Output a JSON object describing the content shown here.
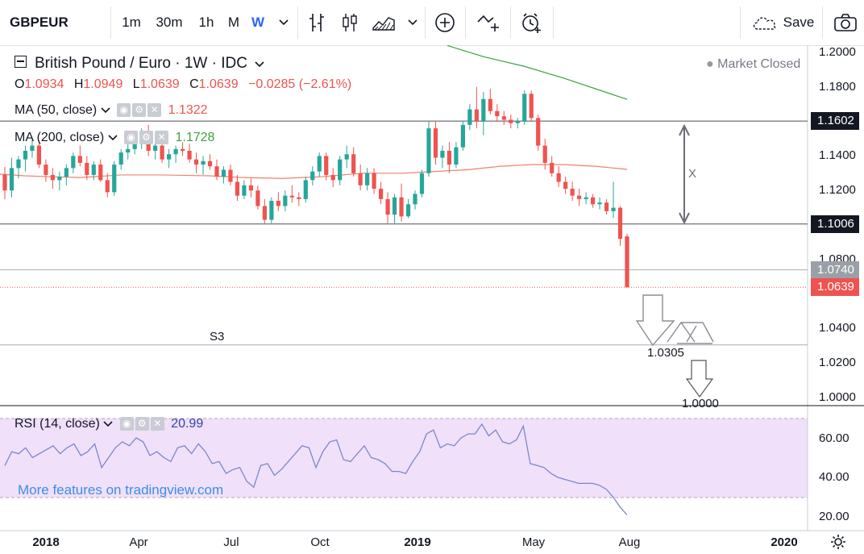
{
  "toolbar": {
    "symbol": "GBPEUR",
    "intervals": [
      "1m",
      "30m",
      "1h",
      "M",
      "W"
    ],
    "active_interval": "W",
    "save_label": "Save",
    "icons": [
      "chevron-down-icon",
      "bar-chart-icon",
      "candlestick-icon",
      "area-chart-icon",
      "chevron-down-icon",
      "add-indicator-icon",
      "compare-icon",
      "alert-icon",
      "cloud-save-icon",
      "camera-icon"
    ]
  },
  "legend": {
    "title": "British Pound / Euro · 1W · IDC",
    "o_label": "O",
    "o_value": "1.0934",
    "h_label": "H",
    "h_value": "1.0949",
    "l_label": "L",
    "l_value": "1.0639",
    "c_label": "C",
    "c_value": "1.0639",
    "change": "−0.0285 (−2.61%)",
    "market_status": "Market Closed",
    "ma50_label": "MA (50, close)",
    "ma50_value": "1.1322",
    "ma200_label": "MA (200, close)",
    "ma200_value": "1.1728",
    "rsi_label": "RSI (14, close)",
    "rsi_value": "20.99",
    "promo": "More features on tradingview.com"
  },
  "colors": {
    "up": "#26a69a",
    "down": "#ef5350",
    "ma50": "#f0806e",
    "ma200": "#3fa040",
    "rsi": "#7b88c8",
    "rsi_band": "#f0e0fa",
    "accent": "#2962ff"
  },
  "chart_data": {
    "type": "candlestick",
    "symbol": "GBPEUR",
    "y_ticks": [
      "1.2000",
      "1.1800",
      "1.1400",
      "1.1200",
      "1.0800",
      "1.0400",
      "1.0200",
      "1.0000"
    ],
    "x_ticks": [
      "2018",
      "Apr",
      "Jul",
      "Oct",
      "2019",
      "May",
      "Aug",
      "2020"
    ],
    "price_tags": [
      {
        "label": "1.1602",
        "value": 1.1602,
        "bg": "#131722"
      },
      {
        "label": "1.1006",
        "value": 1.1006,
        "bg": "#131722"
      },
      {
        "label": "1.0740",
        "value": 1.074,
        "bg": "#9aa0a8"
      },
      {
        "label": "1.0639",
        "value": 1.0639,
        "bg": "#ef5350"
      }
    ],
    "horizontal_lines": [
      1.1602,
      1.1006,
      1.074,
      1.0305
    ],
    "annotations": {
      "s3": "S3",
      "s3_value": "1.0305",
      "target": "1.0000",
      "range_mark": "X"
    },
    "candles_ohlc": [
      [
        1.1292,
        1.1336,
        1.115,
        1.12
      ],
      [
        1.12,
        1.139,
        1.116,
        1.133
      ],
      [
        1.133,
        1.14,
        1.127,
        1.138
      ],
      [
        1.138,
        1.146,
        1.131,
        1.143
      ],
      [
        1.143,
        1.15,
        1.139,
        1.146
      ],
      [
        1.146,
        1.149,
        1.133,
        1.135
      ],
      [
        1.135,
        1.138,
        1.125,
        1.129
      ],
      [
        1.129,
        1.133,
        1.121,
        1.126
      ],
      [
        1.126,
        1.131,
        1.12,
        1.128
      ],
      [
        1.128,
        1.135,
        1.123,
        1.133
      ],
      [
        1.133,
        1.142,
        1.13,
        1.14
      ],
      [
        1.14,
        1.146,
        1.134,
        1.136
      ],
      [
        1.136,
        1.14,
        1.126,
        1.129
      ],
      [
        1.129,
        1.137,
        1.126,
        1.135
      ],
      [
        1.135,
        1.138,
        1.125,
        1.126
      ],
      [
        1.126,
        1.13,
        1.116,
        1.119
      ],
      [
        1.119,
        1.137,
        1.117,
        1.135
      ],
      [
        1.135,
        1.144,
        1.132,
        1.142
      ],
      [
        1.142,
        1.147,
        1.138,
        1.144
      ],
      [
        1.144,
        1.152,
        1.141,
        1.149
      ],
      [
        1.149,
        1.156,
        1.144,
        1.153
      ],
      [
        1.153,
        1.158,
        1.14,
        1.143
      ],
      [
        1.143,
        1.15,
        1.138,
        1.146
      ],
      [
        1.146,
        1.149,
        1.136,
        1.138
      ],
      [
        1.138,
        1.144,
        1.133,
        1.141
      ],
      [
        1.141,
        1.146,
        1.136,
        1.144
      ],
      [
        1.144,
        1.148,
        1.14,
        1.143
      ],
      [
        1.143,
        1.147,
        1.136,
        1.138
      ],
      [
        1.138,
        1.142,
        1.13,
        1.135
      ],
      [
        1.135,
        1.14,
        1.129,
        1.137
      ],
      [
        1.137,
        1.141,
        1.132,
        1.134
      ],
      [
        1.134,
        1.138,
        1.126,
        1.128
      ],
      [
        1.128,
        1.134,
        1.124,
        1.132
      ],
      [
        1.132,
        1.135,
        1.123,
        1.125
      ],
      [
        1.125,
        1.129,
        1.114,
        1.117
      ],
      [
        1.117,
        1.126,
        1.115,
        1.123
      ],
      [
        1.123,
        1.127,
        1.116,
        1.12
      ],
      [
        1.12,
        1.123,
        1.109,
        1.111
      ],
      [
        1.111,
        1.115,
        1.101,
        1.103
      ],
      [
        1.103,
        1.116,
        1.101,
        1.114
      ],
      [
        1.114,
        1.119,
        1.108,
        1.111
      ],
      [
        1.111,
        1.12,
        1.108,
        1.117
      ],
      [
        1.117,
        1.123,
        1.113,
        1.116
      ],
      [
        1.116,
        1.119,
        1.111,
        1.115
      ],
      [
        1.115,
        1.128,
        1.113,
        1.126
      ],
      [
        1.126,
        1.134,
        1.123,
        1.131
      ],
      [
        1.131,
        1.142,
        1.128,
        1.14
      ],
      [
        1.14,
        1.142,
        1.126,
        1.129
      ],
      [
        1.129,
        1.133,
        1.122,
        1.126
      ],
      [
        1.126,
        1.14,
        1.123,
        1.138
      ],
      [
        1.138,
        1.146,
        1.133,
        1.141
      ],
      [
        1.141,
        1.145,
        1.128,
        1.13
      ],
      [
        1.13,
        1.135,
        1.12,
        1.123
      ],
      [
        1.123,
        1.133,
        1.12,
        1.13
      ],
      [
        1.13,
        1.133,
        1.118,
        1.121
      ],
      [
        1.121,
        1.125,
        1.112,
        1.115
      ],
      [
        1.115,
        1.119,
        1.101,
        1.106
      ],
      [
        1.106,
        1.118,
        1.101,
        1.116
      ],
      [
        1.116,
        1.124,
        1.102,
        1.105
      ],
      [
        1.105,
        1.115,
        1.104,
        1.112
      ],
      [
        1.112,
        1.12,
        1.109,
        1.118
      ],
      [
        1.118,
        1.132,
        1.116,
        1.13
      ],
      [
        1.13,
        1.16,
        1.128,
        1.156
      ],
      [
        1.156,
        1.16,
        1.135,
        1.139
      ],
      [
        1.139,
        1.146,
        1.133,
        1.143
      ],
      [
        1.143,
        1.148,
        1.13,
        1.135
      ],
      [
        1.135,
        1.148,
        1.133,
        1.145
      ],
      [
        1.145,
        1.16,
        1.143,
        1.158
      ],
      [
        1.158,
        1.17,
        1.155,
        1.167
      ],
      [
        1.167,
        1.18,
        1.156,
        1.16
      ],
      [
        1.16,
        1.177,
        1.152,
        1.173
      ],
      [
        1.173,
        1.179,
        1.164,
        1.166
      ],
      [
        1.166,
        1.17,
        1.16,
        1.163
      ],
      [
        1.163,
        1.166,
        1.158,
        1.161
      ],
      [
        1.161,
        1.164,
        1.156,
        1.159
      ],
      [
        1.159,
        1.162,
        1.156,
        1.16
      ],
      [
        1.16,
        1.178,
        1.158,
        1.176
      ],
      [
        1.176,
        1.178,
        1.16,
        1.162
      ],
      [
        1.162,
        1.164,
        1.143,
        1.146
      ],
      [
        1.146,
        1.15,
        1.132,
        1.136
      ],
      [
        1.136,
        1.14,
        1.128,
        1.13
      ],
      [
        1.13,
        1.134,
        1.122,
        1.125
      ],
      [
        1.125,
        1.128,
        1.118,
        1.121
      ],
      [
        1.121,
        1.125,
        1.114,
        1.117
      ],
      [
        1.117,
        1.121,
        1.111,
        1.115
      ],
      [
        1.115,
        1.119,
        1.112,
        1.116
      ],
      [
        1.116,
        1.118,
        1.11,
        1.112
      ],
      [
        1.112,
        1.116,
        1.109,
        1.113
      ],
      [
        1.113,
        1.115,
        1.106,
        1.108
      ],
      [
        1.108,
        1.125,
        1.104,
        1.11
      ],
      [
        1.11,
        1.111,
        1.088,
        1.092
      ],
      [
        1.0934,
        1.0949,
        1.0639,
        1.0639
      ]
    ],
    "ma50_points": [
      [
        0,
        1.1295
      ],
      [
        30,
        1.1285
      ],
      [
        60,
        1.128
      ],
      [
        100,
        1.1275
      ],
      [
        150,
        1.129
      ],
      [
        200,
        1.129
      ],
      [
        260,
        1.1285
      ],
      [
        300,
        1.1275
      ],
      [
        350,
        1.127
      ],
      [
        400,
        1.128
      ],
      [
        450,
        1.13
      ],
      [
        500,
        1.13
      ],
      [
        540,
        1.131
      ],
      [
        580,
        1.132
      ],
      [
        620,
        1.134
      ],
      [
        660,
        1.135
      ],
      [
        700,
        1.135
      ],
      [
        740,
        1.134
      ],
      [
        778,
        1.1322
      ]
    ],
    "ma200_points": [
      [
        555,
        1.204
      ],
      [
        600,
        1.1975
      ],
      [
        650,
        1.192
      ],
      [
        700,
        1.185
      ],
      [
        778,
        1.1728
      ]
    ],
    "rsi_ticks": [
      "60.00",
      "40.00",
      "20.00"
    ],
    "rsi_band": [
      30,
      70
    ],
    "rsi_values": [
      46,
      53,
      52,
      55,
      50,
      52,
      54,
      56,
      52,
      55,
      57,
      51,
      53,
      57,
      45,
      50,
      55,
      58,
      56,
      60,
      58,
      51,
      53,
      50,
      48,
      55,
      56,
      52,
      57,
      53,
      47,
      48,
      42,
      44,
      45,
      38,
      35,
      46,
      47,
      41,
      44,
      48,
      52,
      56,
      55,
      45,
      53,
      58,
      59,
      49,
      48,
      52,
      56,
      50,
      49,
      47,
      43,
      43,
      42,
      48,
      53,
      62,
      64,
      55,
      57,
      56,
      60,
      62,
      62,
      67,
      61,
      64,
      58,
      57,
      59,
      66,
      47,
      46,
      45,
      42,
      40,
      39,
      38,
      37,
      37,
      37,
      36,
      34,
      30,
      25,
      21
    ]
  }
}
